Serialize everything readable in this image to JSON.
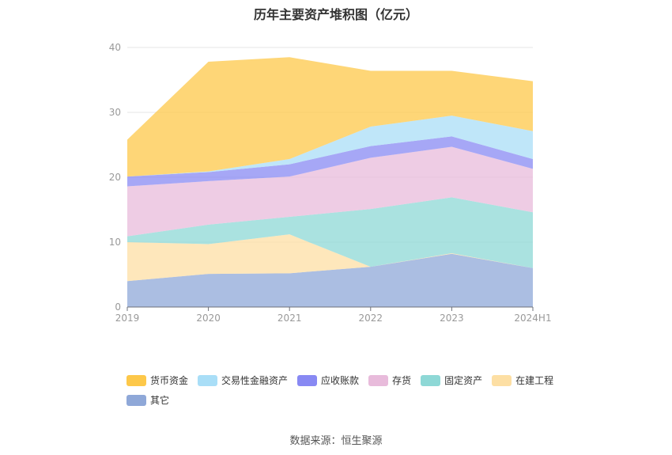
{
  "title": "历年主要资产堆积图（亿元）",
  "source": "数据来源：恒生聚源",
  "chart_data": {
    "type": "area",
    "stacked": true,
    "categories": [
      "2019",
      "2020",
      "2021",
      "2022",
      "2023",
      "2024H1"
    ],
    "ylim": [
      0,
      40
    ],
    "yticks": [
      0,
      10,
      20,
      30,
      40
    ],
    "grid": true,
    "legend_position": "bottom",
    "series": [
      {
        "name": "其它",
        "color": "#8fa8d8",
        "values": [
          4.0,
          5.1,
          5.2,
          6.2,
          8.2,
          6.0
        ]
      },
      {
        "name": "在建工程",
        "color": "#fddfa4",
        "values": [
          6.0,
          4.6,
          6.0,
          0.0,
          0.1,
          0.0
        ]
      },
      {
        "name": "固定资产",
        "color": "#8ed8d6",
        "values": [
          0.9,
          3.0,
          2.7,
          8.9,
          8.6,
          8.6
        ]
      },
      {
        "name": "存货",
        "color": "#e8bbdb",
        "values": [
          7.7,
          6.7,
          6.2,
          7.9,
          7.8,
          6.7
        ]
      },
      {
        "name": "应收账款",
        "color": "#8889f3",
        "values": [
          1.5,
          1.4,
          1.9,
          1.8,
          1.6,
          1.5
        ]
      },
      {
        "name": "交易性金融资产",
        "color": "#a9def7",
        "values": [
          0.0,
          0.1,
          0.8,
          3.0,
          3.2,
          4.3
        ]
      },
      {
        "name": "货币资金",
        "color": "#fdc84a",
        "values": [
          5.7,
          16.9,
          15.7,
          8.6,
          6.9,
          7.7
        ]
      }
    ],
    "legend_order": [
      "货币资金",
      "交易性金融资产",
      "应收账款",
      "存货",
      "固定资产",
      "在建工程",
      "其它"
    ]
  }
}
